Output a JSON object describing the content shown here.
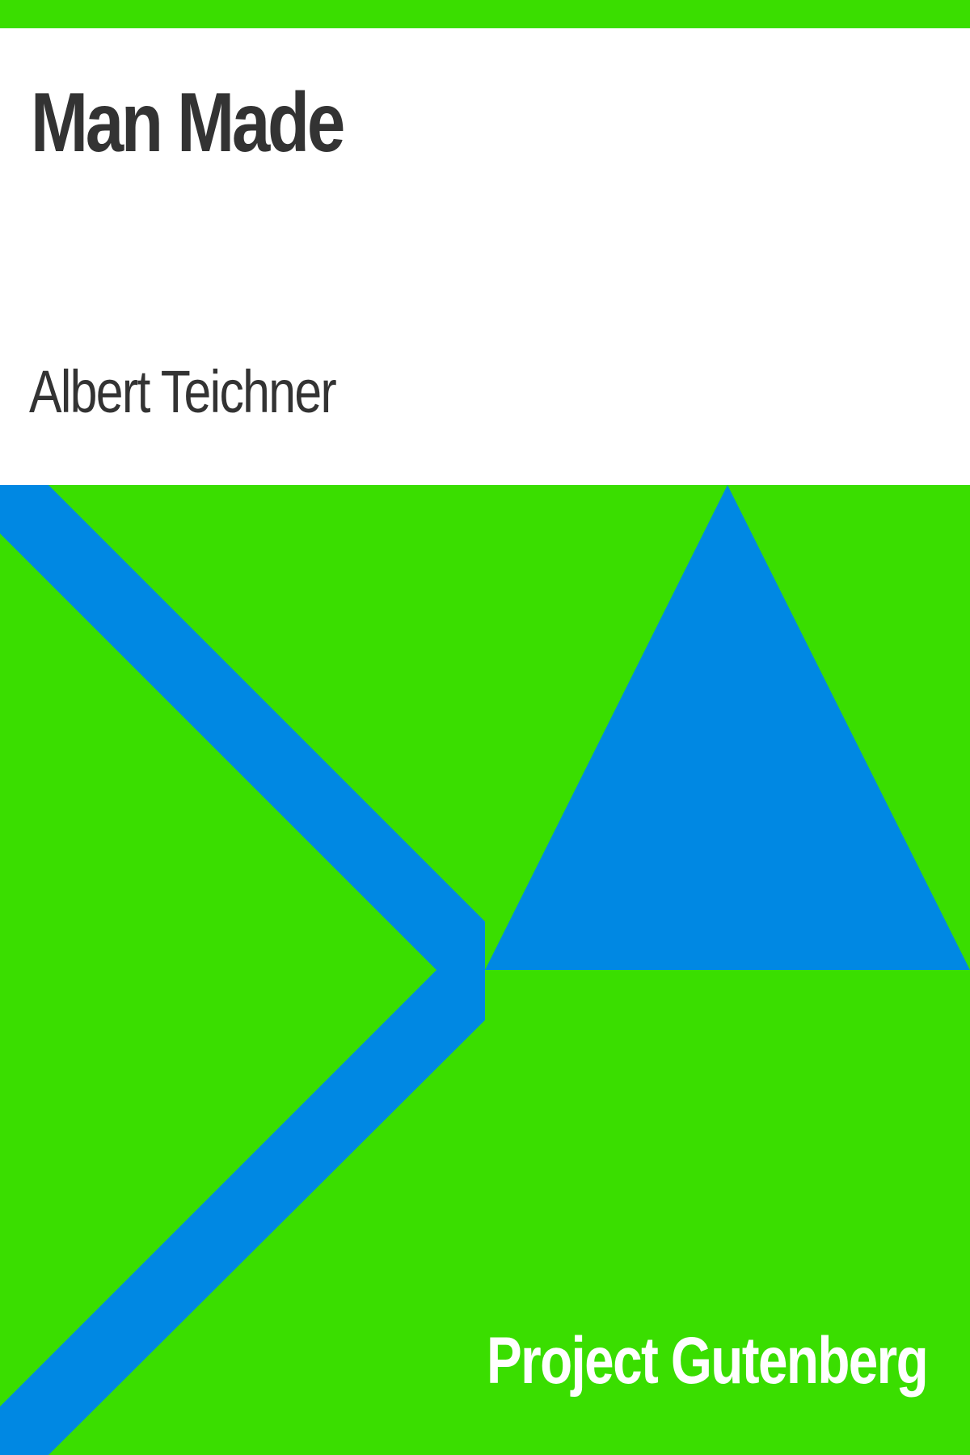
{
  "cover": {
    "title": "Man Made",
    "author": "Albert Teichner",
    "publisher": "Project Gutenberg"
  },
  "colors": {
    "green": "#3ade00",
    "blue": "#0088e3",
    "text_dark": "#333333",
    "text_light": "#ffffff",
    "background": "#ffffff"
  }
}
